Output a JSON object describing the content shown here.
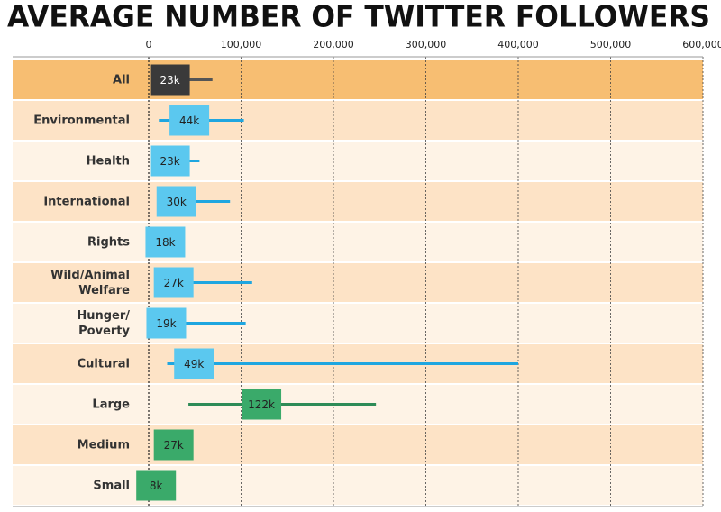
{
  "chart_data": {
    "type": "range",
    "title": "AVERAGE NUMBER OF TWITTER FOLLOWERS",
    "categories": [
      "All",
      "Environmental",
      "Health",
      "International",
      "Rights",
      "Wild/Animal\nWelfare",
      "Hunger/\nPoverty",
      "Cultural",
      "Large",
      "Medium",
      "Small"
    ],
    "values": [
      23000,
      44000,
      23000,
      30000,
      18000,
      27000,
      19000,
      49000,
      122000,
      27000,
      8000
    ],
    "value_labels": [
      "23k",
      "44k",
      "23k",
      "30k",
      "18k",
      "27k",
      "19k",
      "49k",
      "122k",
      "27k",
      "8k"
    ],
    "mins": [
      6000,
      11000,
      11000,
      16000,
      10000,
      14000,
      14000,
      20000,
      43000,
      20000,
      0
    ],
    "maxes": [
      69000,
      103000,
      55000,
      88000,
      28000,
      112000,
      105000,
      400000,
      246000,
      35000,
      15000
    ],
    "colors": [
      "#3a3a3a",
      "#5bc8ef",
      "#5bc8ef",
      "#5bc8ef",
      "#5bc8ef",
      "#5bc8ef",
      "#5bc8ef",
      "#5bc8ef",
      "#3aaa6a",
      "#3aaa6a",
      "#3aaa6a"
    ],
    "line_colors": [
      "#555555",
      "#1fa6e0",
      "#1fa6e0",
      "#1fa6e0",
      "#1fa6e0",
      "#1fa6e0",
      "#1fa6e0",
      "#1fa6e0",
      "#2e8b57",
      "#2e8b57",
      "#2e8b57"
    ],
    "xlim": [
      0,
      600000
    ],
    "xticks": [
      0,
      {
        "value": 100000,
        "label": "100,000"
      },
      {
        "value": 200000,
        "label": "200,000"
      },
      {
        "value": 300000,
        "label": "300,000"
      },
      {
        "value": 400000,
        "label": "400,000"
      },
      {
        "value": 500000,
        "label": "500,000"
      },
      {
        "value": 600000,
        "label": "600,000"
      }
    ],
    "grid": true
  }
}
